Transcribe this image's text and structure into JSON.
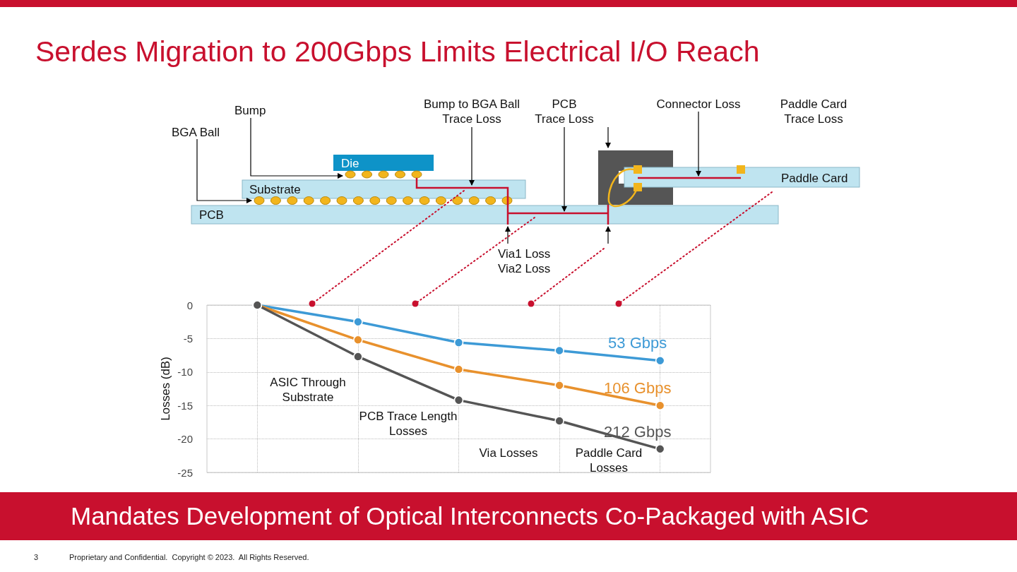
{
  "chart_data": {
    "type": "line",
    "title": "Serdes Migration to 200Gbps Limits Electrical I/O Reach",
    "subtitle": "Mandates Development of Optical Interconnects Co-Packaged with ASIC",
    "ylabel": "Losses (dB)",
    "categories": [
      null,
      null,
      null,
      null,
      null
    ],
    "series": [
      {
        "name": "53 Gbps",
        "color": "#3d9ad6",
        "values": [
          0,
          -2.5,
          -5.6,
          -6.8,
          -8.3
        ]
      },
      {
        "name": "106 Gbps",
        "color": "#e8912d",
        "values": [
          0,
          -5.2,
          -9.6,
          -12.0,
          -15.0
        ]
      },
      {
        "name": "212 Gbps",
        "color": "#555555",
        "values": [
          0,
          -7.7,
          -14.2,
          -17.3,
          -21.5
        ]
      }
    ],
    "ylim": [
      -25,
      0
    ],
    "yticks": [
      -25,
      -20,
      -15,
      -10,
      -5,
      0
    ],
    "grid": true,
    "legend": false,
    "marker": "circle",
    "line_style": "solid",
    "annotations": [
      "BGA Ball",
      "Bump",
      "Bump to BGA Ball\nTrace Loss",
      "PCB\nTrace Loss",
      "Connector Loss",
      "Paddle Card\nTrace Loss",
      "Die",
      "Substrate",
      "PCB",
      "Paddle Card",
      "Via1 Loss\nVia2 Loss",
      "ASIC Through\nSubstrate",
      "PCB Trace Length\nLosses",
      "Via Losses",
      "Paddle Card\nLosses",
      "Proprietary and Confidential.  Copyright © 2023.  All Rights Reserved.",
      "3"
    ]
  }
}
